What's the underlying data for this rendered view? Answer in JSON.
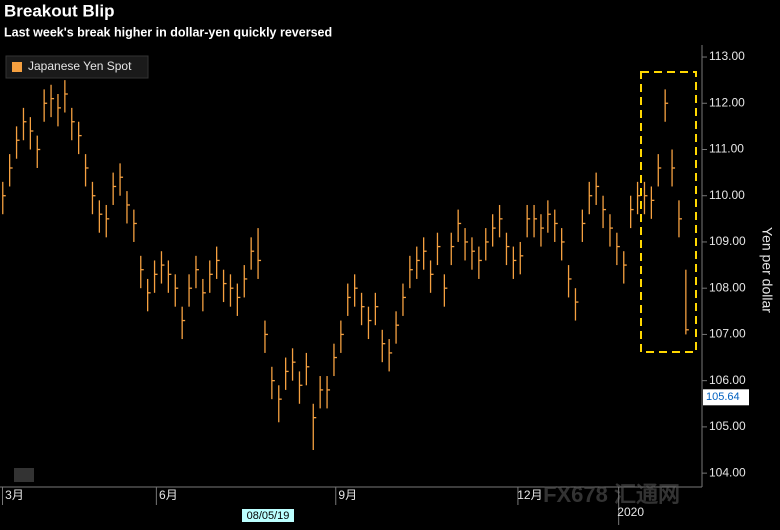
{
  "chart_data": {
    "type": "ohlc",
    "title": "Breakout Blip",
    "subtitle": "Last week's break higher in dollar-yen quickly reversed",
    "y_label": "Yen per dollar",
    "legend": "Japanese Yen Spot",
    "color": "#f5a040",
    "current_value": 105.64,
    "cursor_date": "08/05/19",
    "watermark": "FX678 汇通网",
    "x": [
      0,
      1,
      2,
      3,
      4,
      5,
      6,
      7,
      8,
      9,
      10,
      11,
      12,
      13,
      14,
      15,
      16,
      17,
      18,
      19,
      20,
      21,
      22,
      23,
      24,
      25,
      26,
      27,
      28,
      29,
      30,
      31,
      32,
      33,
      34,
      35,
      36,
      37,
      38,
      39,
      40,
      41,
      42,
      43,
      44,
      45,
      46,
      47,
      48,
      49,
      50,
      51,
      52,
      53,
      54,
      55,
      56,
      57,
      58,
      59,
      60,
      61,
      62,
      63,
      64,
      65,
      66,
      67,
      68,
      69,
      70,
      71,
      72,
      73,
      74,
      75,
      76,
      77,
      78,
      79,
      80,
      81,
      82,
      83,
      84,
      85,
      86,
      87,
      88,
      89,
      90,
      91,
      92,
      93,
      94,
      95,
      96,
      97,
      98,
      99
    ],
    "high": [
      110.3,
      110.9,
      111.5,
      111.9,
      111.7,
      111.3,
      112.3,
      112.4,
      112.2,
      112.5,
      111.9,
      111.6,
      110.9,
      110.3,
      109.9,
      109.8,
      110.5,
      110.7,
      110.1,
      109.7,
      108.7,
      108.2,
      108.6,
      108.8,
      108.6,
      108.3,
      107.6,
      108.3,
      108.7,
      108.2,
      108.6,
      108.9,
      108.4,
      108.3,
      108.1,
      108.5,
      109.1,
      109.3,
      107.3,
      106.3,
      105.9,
      106.5,
      106.7,
      106.2,
      106.6,
      105.5,
      106.1,
      106.1,
      106.8,
      107.3,
      108.1,
      108.3,
      107.9,
      107.6,
      107.9,
      107.1,
      106.9,
      107.5,
      108.1,
      108.7,
      108.9,
      109.1,
      108.6,
      109.2,
      108.3,
      109.2,
      109.7,
      109.3,
      109.1,
      108.9,
      109.3,
      109.6,
      109.8,
      109.2,
      108.9,
      109.0,
      109.8,
      109.8,
      109.6,
      109.9,
      109.7,
      109.3,
      108.5,
      108.0,
      109.7,
      110.3,
      110.5,
      110.0,
      109.6,
      109.2,
      108.8,
      110.0,
      110.3,
      110.3,
      110.2,
      110.9,
      112.3,
      111.0,
      109.9,
      108.4
    ],
    "low": [
      109.6,
      110.2,
      110.8,
      111.2,
      111.0,
      110.6,
      111.6,
      111.7,
      111.5,
      111.8,
      111.2,
      110.9,
      110.2,
      109.6,
      109.2,
      109.1,
      109.8,
      110.0,
      109.4,
      109.0,
      108.0,
      107.5,
      107.9,
      108.1,
      107.9,
      107.6,
      106.9,
      107.6,
      108.0,
      107.5,
      107.9,
      108.2,
      107.7,
      107.6,
      107.4,
      107.8,
      108.4,
      108.2,
      106.6,
      105.6,
      105.1,
      105.8,
      106.0,
      105.5,
      105.9,
      104.5,
      105.4,
      105.4,
      106.1,
      106.6,
      107.4,
      107.6,
      107.2,
      106.9,
      107.2,
      106.4,
      106.2,
      106.8,
      107.4,
      108.0,
      108.2,
      108.4,
      107.9,
      108.5,
      107.6,
      108.5,
      109.0,
      108.6,
      108.4,
      108.2,
      108.6,
      108.9,
      109.1,
      108.5,
      108.2,
      108.3,
      109.1,
      109.1,
      108.9,
      109.2,
      109.0,
      108.6,
      107.8,
      107.3,
      109.0,
      109.6,
      109.8,
      109.3,
      108.9,
      108.5,
      108.1,
      109.3,
      109.6,
      109.6,
      109.5,
      110.2,
      111.6,
      110.2,
      109.1,
      107.0
    ],
    "close": [
      110.0,
      110.6,
      111.2,
      111.6,
      111.4,
      111.0,
      112.0,
      112.1,
      111.9,
      112.2,
      111.6,
      111.3,
      110.6,
      110.0,
      109.6,
      109.5,
      110.2,
      110.4,
      109.8,
      109.4,
      108.4,
      107.9,
      108.3,
      108.5,
      108.3,
      108.0,
      107.3,
      108.0,
      108.4,
      107.9,
      108.3,
      108.6,
      108.1,
      108.0,
      107.8,
      108.2,
      108.8,
      108.6,
      107.0,
      106.0,
      105.6,
      106.2,
      106.4,
      105.9,
      106.3,
      105.2,
      105.8,
      105.8,
      106.5,
      107.0,
      107.8,
      108.0,
      107.6,
      107.3,
      107.6,
      106.8,
      106.6,
      107.2,
      107.8,
      108.4,
      108.6,
      108.8,
      108.3,
      108.9,
      108.0,
      108.9,
      109.4,
      109.0,
      108.8,
      108.6,
      109.0,
      109.3,
      109.5,
      108.9,
      108.6,
      108.7,
      109.5,
      109.5,
      109.3,
      109.6,
      109.4,
      109.0,
      108.2,
      107.7,
      109.4,
      110.0,
      110.2,
      109.7,
      109.3,
      108.9,
      108.5,
      109.7,
      110.0,
      110.0,
      109.9,
      110.6,
      112.0,
      110.6,
      109.5,
      107.1
    ],
    "xlim": [
      -0.4,
      99.6
    ],
    "xticks": [
      {
        "value": 1.7,
        "label": "3月"
      },
      {
        "value": 24,
        "label": "6月"
      },
      {
        "value": 50,
        "label": "9月"
      },
      {
        "value": 76.4,
        "label": "12月"
      },
      {
        "value": 91,
        "label": "2020"
      }
    ],
    "ylim": [
      103.7,
      113.26
    ],
    "yticks": [
      {
        "value": 113,
        "label": "113.00"
      },
      {
        "value": 112,
        "label": "112.00"
      },
      {
        "value": 111,
        "label": "111.00"
      },
      {
        "value": 110,
        "label": "110.00"
      },
      {
        "value": 109,
        "label": "109.00"
      },
      {
        "value": 108,
        "label": "108.00"
      },
      {
        "value": 107,
        "label": "107.00"
      },
      {
        "value": 106,
        "label": "106.00"
      },
      {
        "value": 105,
        "label": "105.00"
      },
      {
        "value": 104,
        "label": "104.00"
      }
    ]
  }
}
